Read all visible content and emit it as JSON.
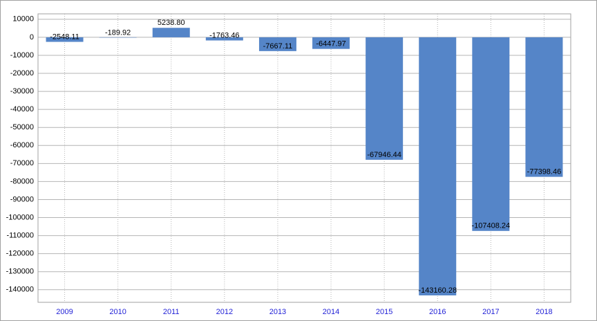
{
  "chart_data": {
    "type": "bar",
    "categories": [
      "2009",
      "2010",
      "2011",
      "2012",
      "2013",
      "2014",
      "2015",
      "2016",
      "2017",
      "2018"
    ],
    "values": [
      -2548.11,
      -189.92,
      5238.8,
      -1763.46,
      -7667.11,
      -6447.97,
      -67946.44,
      -143160.28,
      -107408.24,
      -77398.46
    ],
    "value_labels": [
      "-2548.11",
      "-189.92",
      "5238.80",
      "-1763.46",
      "-7667.11",
      "-6447.97",
      "-67946.44",
      "-143160.28",
      "-107408.24",
      "-77398.46"
    ],
    "color": "#5585c8",
    "ylim": [
      -147000,
      13000
    ],
    "yticks": [
      -140000,
      -130000,
      -120000,
      -110000,
      -100000,
      -90000,
      -80000,
      -70000,
      -60000,
      -50000,
      -40000,
      -30000,
      -20000,
      -10000,
      0,
      10000
    ],
    "grid": true
  }
}
